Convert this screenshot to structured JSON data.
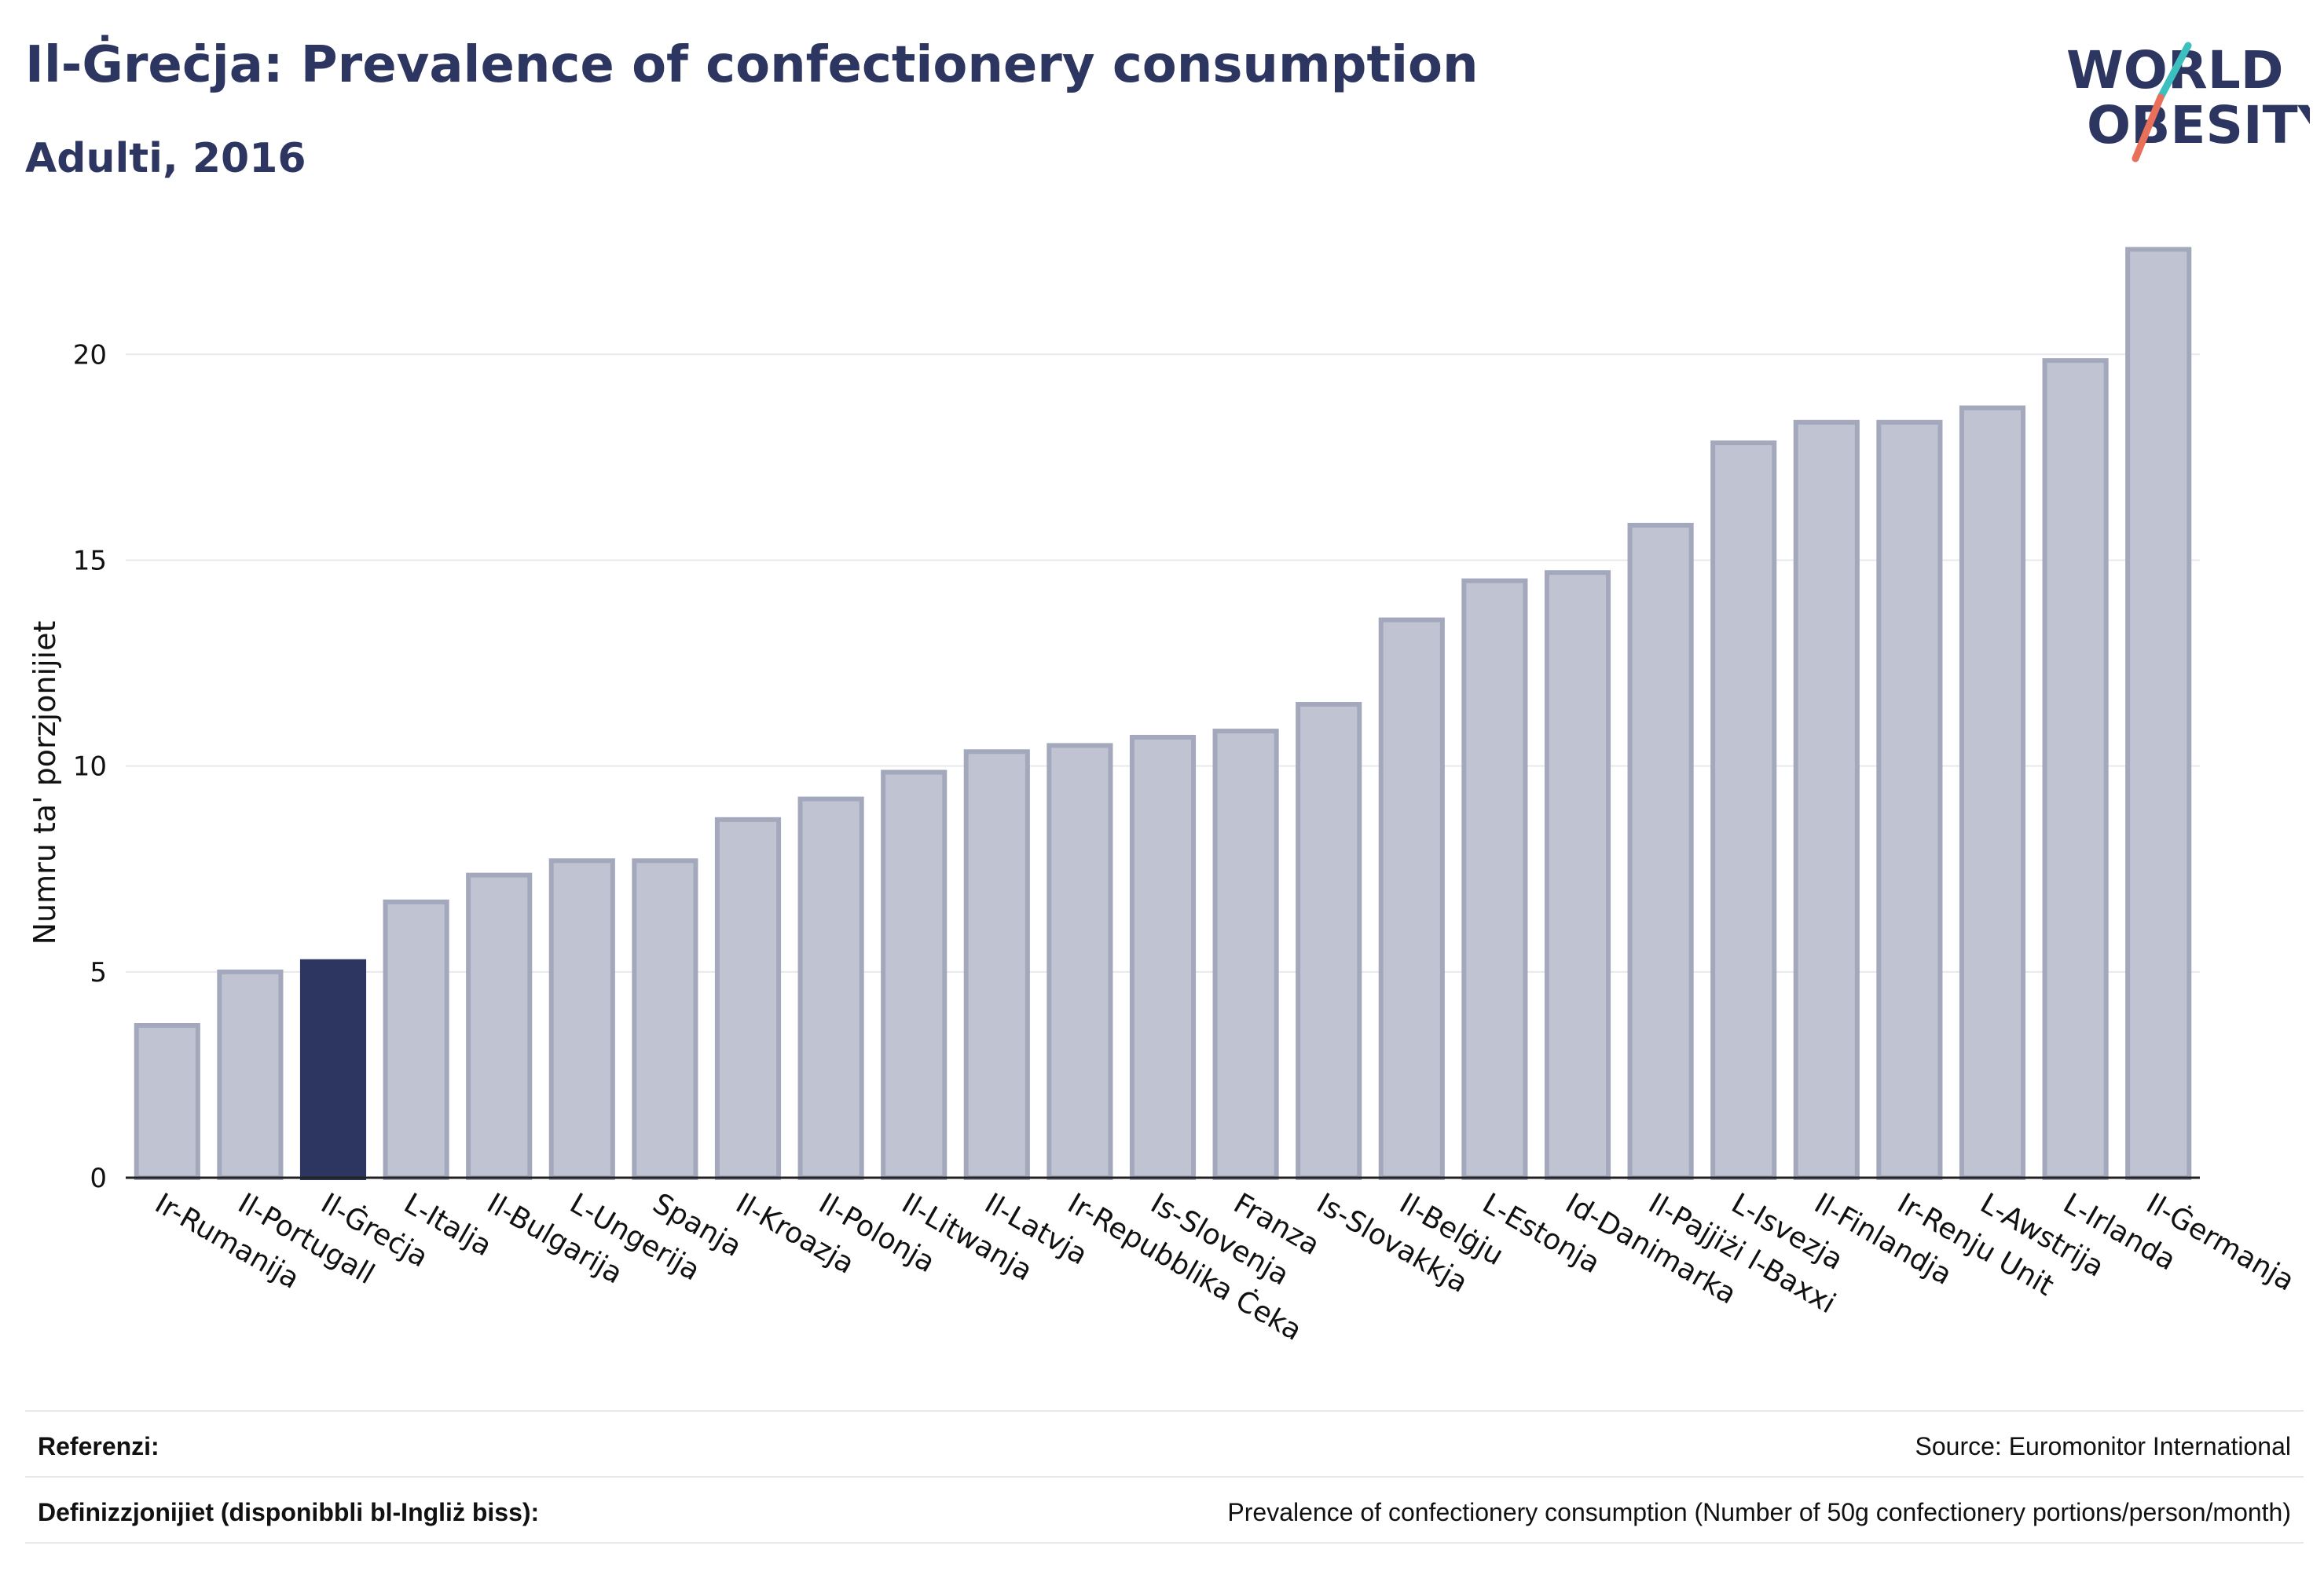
{
  "header": {
    "title": "Il-Ġreċja: Prevalence of confectionery consumption",
    "subtitle": "Adulti, 2016"
  },
  "logo": {
    "line1": "WORLD",
    "line2": "OBESITY",
    "accent_colors": [
      "#3bbfbf",
      "#e8705a"
    ]
  },
  "footer": {
    "references_label": "Referenzi:",
    "references_value": "Source: Euromonitor International",
    "definitions_label": "Definizzjonijiet (disponibbli bl-Ingliż biss):",
    "definitions_value": "Prevalence of confectionery consumption (Number of 50g confectionery portions/person/month)"
  },
  "colors": {
    "bar": "#c0c4d2",
    "bar_stroke": "#a3a8bd",
    "highlight": "#2d3660",
    "grid": "#e8e9ef",
    "axis": "#222222"
  },
  "chart_data": {
    "type": "bar",
    "title": "Il-Ġreċja: Prevalence of confectionery consumption",
    "subtitle": "Adulti, 2016",
    "xlabel": "",
    "ylabel": "Numru ta' porzjonijiet",
    "ylim": [
      0,
      23
    ],
    "yticks": [
      0,
      5,
      10,
      15,
      20
    ],
    "grid": true,
    "highlight_category": "Il-Ġreċja",
    "categories": [
      "Ir-Rumanija",
      "Il-Portugall",
      "Il-Ġreċja",
      "L-Italja",
      "Il-Bulgarija",
      "L-Ungerija",
      "Spanja",
      "Il-Kroazja",
      "Il-Polonja",
      "Il-Litwanja",
      "Il-Latvja",
      "Ir-Repubblika Ċeka",
      "Is-Slovenja",
      "Franza",
      "Is-Slovakkja",
      "Il-Belġju",
      "L-Estonja",
      "Id-Danimarka",
      "Il-Pajjiżi l-Baxxi",
      "L-Isvezja",
      "Il-Finlandja",
      "Ir-Renju Unit",
      "L-Awstrija",
      "L-Irlanda",
      "Il-Ġermanja"
    ],
    "values": [
      3.7,
      5.0,
      5.25,
      6.7,
      7.35,
      7.7,
      7.7,
      8.7,
      9.2,
      9.85,
      10.35,
      10.5,
      10.7,
      10.85,
      11.5,
      13.55,
      14.5,
      14.7,
      15.85,
      17.85,
      18.35,
      18.35,
      18.7,
      19.85,
      22.55
    ]
  }
}
